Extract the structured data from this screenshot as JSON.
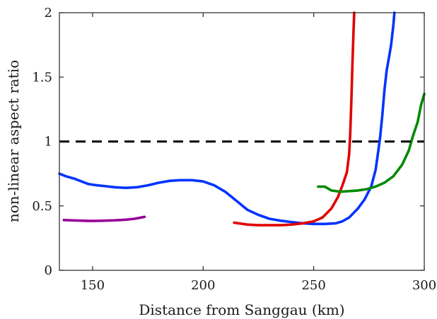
{
  "chart_data": {
    "type": "line",
    "xlabel": "Distance from Sanggau (km)",
    "ylabel": "non-linear aspect ratio",
    "xlim": [
      135,
      300
    ],
    "ylim": [
      0,
      2
    ],
    "xticks": [
      150,
      200,
      250,
      300
    ],
    "yticks": [
      0,
      0.5,
      1,
      1.5,
      2
    ],
    "ytick_labels": [
      "0",
      "0.5",
      "1",
      "1.5",
      "2"
    ],
    "grid": false,
    "legend": "none",
    "reference_line": {
      "y": 1,
      "style": "dashed",
      "color": "#000000"
    },
    "series": [
      {
        "color": "#0033ff",
        "points": [
          [
            135,
            0.75
          ],
          [
            138,
            0.73
          ],
          [
            142,
            0.71
          ],
          [
            145,
            0.69
          ],
          [
            148,
            0.67
          ],
          [
            152,
            0.66
          ],
          [
            155,
            0.655
          ],
          [
            160,
            0.645
          ],
          [
            165,
            0.64
          ],
          [
            170,
            0.645
          ],
          [
            175,
            0.66
          ],
          [
            180,
            0.68
          ],
          [
            185,
            0.695
          ],
          [
            190,
            0.7
          ],
          [
            195,
            0.7
          ],
          [
            200,
            0.69
          ],
          [
            205,
            0.66
          ],
          [
            210,
            0.61
          ],
          [
            215,
            0.54
          ],
          [
            220,
            0.47
          ],
          [
            225,
            0.43
          ],
          [
            230,
            0.4
          ],
          [
            235,
            0.385
          ],
          [
            240,
            0.375
          ],
          [
            245,
            0.365
          ],
          [
            250,
            0.36
          ],
          [
            255,
            0.36
          ],
          [
            260,
            0.365
          ],
          [
            263,
            0.38
          ],
          [
            266,
            0.41
          ],
          [
            270,
            0.48
          ],
          [
            273,
            0.55
          ],
          [
            276,
            0.65
          ],
          [
            278,
            0.78
          ],
          [
            279,
            0.9
          ],
          [
            280,
            1.03
          ],
          [
            281,
            1.2
          ],
          [
            282,
            1.4
          ],
          [
            283,
            1.55
          ],
          [
            284,
            1.65
          ],
          [
            285,
            1.75
          ],
          [
            286,
            1.9
          ],
          [
            286.5,
            2.0
          ]
        ]
      },
      {
        "color": "#e00000",
        "points": [
          [
            214,
            0.37
          ],
          [
            220,
            0.355
          ],
          [
            225,
            0.35
          ],
          [
            230,
            0.35
          ],
          [
            235,
            0.35
          ],
          [
            240,
            0.355
          ],
          [
            245,
            0.365
          ],
          [
            250,
            0.38
          ],
          [
            254,
            0.41
          ],
          [
            258,
            0.48
          ],
          [
            261,
            0.57
          ],
          [
            263,
            0.66
          ],
          [
            265,
            0.76
          ],
          [
            266,
            0.9
          ],
          [
            266.5,
            1.05
          ],
          [
            267,
            1.3
          ],
          [
            267.5,
            1.6
          ],
          [
            268,
            1.85
          ],
          [
            268.3,
            2.0
          ]
        ]
      },
      {
        "color": "#008a00",
        "points": [
          [
            252,
            0.65
          ],
          [
            255,
            0.65
          ],
          [
            258,
            0.62
          ],
          [
            262,
            0.61
          ],
          [
            266,
            0.615
          ],
          [
            270,
            0.62
          ],
          [
            274,
            0.63
          ],
          [
            278,
            0.65
          ],
          [
            282,
            0.68
          ],
          [
            286,
            0.73
          ],
          [
            290,
            0.82
          ],
          [
            293,
            0.93
          ],
          [
            295,
            1.05
          ],
          [
            297,
            1.15
          ],
          [
            298.5,
            1.28
          ],
          [
            300,
            1.37
          ]
        ]
      },
      {
        "color": "#990099",
        "points": [
          [
            137,
            0.39
          ],
          [
            145,
            0.385
          ],
          [
            150,
            0.383
          ],
          [
            155,
            0.385
          ],
          [
            160,
            0.388
          ],
          [
            165,
            0.393
          ],
          [
            169,
            0.4
          ],
          [
            172,
            0.41
          ],
          [
            173.5,
            0.415
          ]
        ]
      }
    ]
  }
}
